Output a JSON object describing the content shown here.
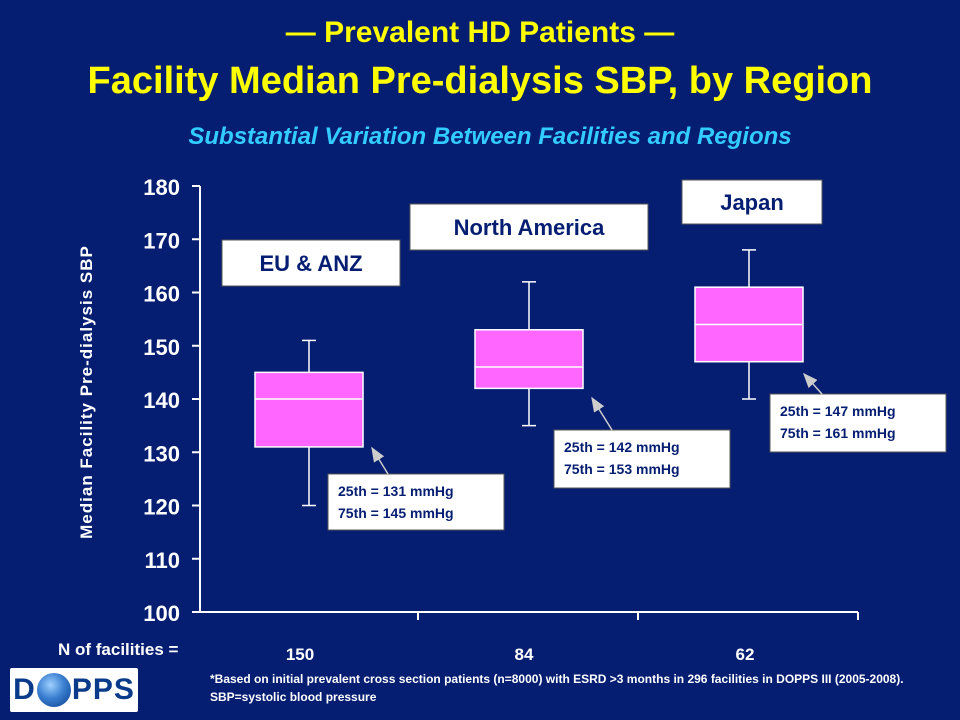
{
  "title_line1": "— Prevalent HD Patients —",
  "title_line2": "Facility Median Pre-dialysis SBP, by Region",
  "subtitle": "Substantial Variation Between Facilities and Regions",
  "colors": {
    "background": "#061e72",
    "title": "#ffff00",
    "subtitle": "#33ccff",
    "box_fill": "#ff66ff",
    "label_box": "#ffffff",
    "label_text": "#061e72"
  },
  "chart_data": {
    "type": "boxplot",
    "ylabel": "Median Facility Pre-dialysis SBP",
    "ylim": [
      100,
      180
    ],
    "yticks": [
      100,
      110,
      120,
      130,
      140,
      150,
      160,
      170,
      180
    ],
    "grid": false,
    "categories": [
      "EU & ANZ",
      "North America",
      "Japan"
    ],
    "boxes": [
      {
        "name": "EU & ANZ",
        "whisker_low": 120,
        "q1": 131,
        "median": 140,
        "q3": 145,
        "whisker_high": 151,
        "n": "150",
        "q1_label": "25th = 131 mmHg",
        "q3_label": "75th = 145 mmHg"
      },
      {
        "name": "North America",
        "whisker_low": 135,
        "q1": 142,
        "median": 146,
        "q3": 153,
        "whisker_high": 162,
        "n": "84",
        "q1_label": "25th = 142 mmHg",
        "q3_label": "75th = 153 mmHg"
      },
      {
        "name": "Japan",
        "whisker_low": 140,
        "q1": 147,
        "median": 154,
        "q3": 161,
        "whisker_high": 168,
        "n": "62",
        "q1_label": "25th = 147 mmHg",
        "q3_label": "75th = 161 mmHg"
      }
    ]
  },
  "n_label": "N of facilities =",
  "footnote": "*Based on initial prevalent cross section patients (n=8000) with ESRD >3 months in 296 facilities in DOPPS III (2005-2008). SBP=systolic blood pressure",
  "logo": {
    "left": "D",
    "right": "PPS"
  }
}
